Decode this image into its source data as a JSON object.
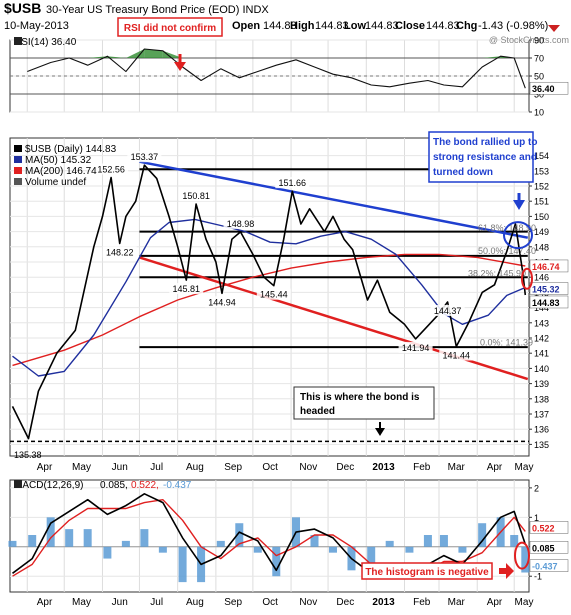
{
  "header": {
    "symbol": "$USB",
    "name": "30-Year US Treasury Bond Price (EOD) INDX",
    "date": "10-May-2013",
    "open_label": "Open",
    "open": "144.83",
    "high_label": "High",
    "high": "144.83",
    "low_label": "Low",
    "low": "144.83",
    "close_label": "Close",
    "close": "144.83",
    "chg_label": "Chg",
    "chg": "-1.43 (-0.98%)",
    "watermark": "@ StockCharts.com"
  },
  "colors": {
    "price": "#000000",
    "ma50": "#1f2f9e",
    "ma200": "#e02020",
    "trend_red": "#e02020",
    "trend_blue": "#1f3fcf",
    "annotation_red": "#e02020",
    "annotation_blue": "#1f3fcf",
    "hist": "#5b9bd5",
    "macd_signal": "#e02020",
    "rsi_fill": "#2e8b2e"
  },
  "x_months": [
    "Apr",
    "May",
    "Jun",
    "Jul",
    "Aug",
    "Sep",
    "Oct",
    "Nov",
    "Dec",
    "2013",
    "Feb",
    "Mar",
    "Apr",
    "May"
  ],
  "chart_data": [
    {
      "type": "line",
      "panel": "rsi",
      "title": "RSI(14) 36.40",
      "ylim": [
        10,
        90
      ],
      "yticks": [
        10,
        30,
        50,
        70,
        90
      ],
      "value_label": "36.40",
      "x": [
        "2012-04-01",
        "2012-04-20",
        "2012-05-05",
        "2012-05-20",
        "2012-06-05",
        "2012-06-20",
        "2012-07-05",
        "2012-07-20",
        "2012-08-05",
        "2012-08-20",
        "2012-09-05",
        "2012-09-20",
        "2012-10-05",
        "2012-10-20",
        "2012-11-05",
        "2012-11-20",
        "2012-12-05",
        "2012-12-20",
        "2013-01-05",
        "2013-01-20",
        "2013-02-05",
        "2013-02-20",
        "2013-03-05",
        "2013-03-20",
        "2013-04-05",
        "2013-04-20",
        "2013-05-01",
        "2013-05-10"
      ],
      "values": [
        55,
        65,
        70,
        62,
        72,
        55,
        80,
        78,
        60,
        45,
        58,
        48,
        55,
        62,
        68,
        60,
        52,
        48,
        40,
        38,
        42,
        45,
        40,
        38,
        60,
        72,
        70,
        36.4
      ]
    },
    {
      "type": "line",
      "panel": "price",
      "title": "$USB (Daily) 144.83",
      "ylim": [
        134.5,
        154.5
      ],
      "yticks": [
        135,
        136,
        137,
        138,
        139,
        140,
        141,
        142,
        143,
        144,
        145,
        146,
        147,
        148,
        149,
        150,
        151,
        152,
        153,
        154
      ],
      "series": [
        {
          "name": "$USB (Daily) 144.83",
          "key": "price",
          "x": [
            "2012-03-20",
            "2012-04-02",
            "2012-04-10",
            "2012-04-25",
            "2012-05-10",
            "2012-05-25",
            "2012-06-01",
            "2012-06-08",
            "2012-06-15",
            "2012-06-20",
            "2012-06-28",
            "2012-07-05",
            "2012-07-15",
            "2012-07-25",
            "2012-08-01",
            "2012-08-08",
            "2012-08-16",
            "2012-08-24",
            "2012-09-01",
            "2012-09-06",
            "2012-09-14",
            "2012-09-21",
            "2012-10-01",
            "2012-10-10",
            "2012-10-18",
            "2012-10-26",
            "2012-11-02",
            "2012-11-09",
            "2012-11-16",
            "2012-11-28",
            "2012-12-05",
            "2012-12-14",
            "2012-12-21",
            "2013-01-02",
            "2013-01-10",
            "2013-01-20",
            "2013-02-01",
            "2013-02-10",
            "2013-02-20",
            "2013-02-28",
            "2013-03-08",
            "2013-03-15",
            "2013-03-25",
            "2013-04-05",
            "2013-04-15",
            "2013-04-25",
            "2013-05-02",
            "2013-05-08",
            "2013-05-10"
          ],
          "values": [
            137.5,
            135.38,
            138.5,
            141,
            142.5,
            148,
            150,
            152.56,
            148.22,
            150,
            151,
            153.37,
            152.5,
            150,
            148,
            145.81,
            150.81,
            148.5,
            147,
            144.94,
            148.5,
            148.98,
            147.5,
            146,
            145.44,
            148.5,
            151.66,
            149.5,
            150.5,
            149,
            150,
            148.5,
            147.8,
            144.5,
            145.8,
            143.7,
            142.9,
            141.94,
            142.8,
            143.5,
            144.37,
            141.44,
            143,
            145,
            145.5,
            147.7,
            149.5,
            146.3,
            144.83
          ]
        },
        {
          "name": "MA(50) 145.32",
          "key": "ma50",
          "x": [
            "2012-03-20",
            "2012-04-10",
            "2012-05-01",
            "2012-05-25",
            "2012-06-20",
            "2012-07-10",
            "2012-07-25",
            "2012-08-15",
            "2012-09-05",
            "2012-09-25",
            "2012-10-15",
            "2012-11-05",
            "2012-11-25",
            "2012-12-15",
            "2013-01-05",
            "2013-01-25",
            "2013-02-15",
            "2013-03-05",
            "2013-03-20",
            "2013-04-10",
            "2013-04-25",
            "2013-05-10"
          ],
          "values": [
            140.8,
            139.5,
            139.8,
            142.2,
            145.7,
            148.6,
            149.6,
            149.8,
            149.4,
            149,
            148.3,
            148.2,
            148.7,
            149,
            148.5,
            147.5,
            145.5,
            143.6,
            142.9,
            143.5,
            144.8,
            145.32
          ]
        },
        {
          "name": "MA(200) 146.74",
          "key": "ma200",
          "x": [
            "2012-03-20",
            "2012-05-01",
            "2012-06-01",
            "2012-07-01",
            "2012-08-01",
            "2012-09-01",
            "2012-10-01",
            "2012-11-01",
            "2012-12-01",
            "2013-01-01",
            "2013-02-01",
            "2013-03-01",
            "2013-04-01",
            "2013-05-10"
          ],
          "values": [
            140.2,
            141.2,
            142.2,
            143.4,
            144.5,
            145.3,
            146,
            146.6,
            147,
            147.3,
            147.5,
            147.5,
            147.3,
            146.74
          ]
        }
      ],
      "legend": [
        "$USB (Daily) 144.83",
        "MA(50) 145.32",
        "MA(200) 146.74",
        "Volume undef"
      ],
      "peak_labels": [
        {
          "x": "2012-06-08",
          "y": 152.56,
          "text": "152.56"
        },
        {
          "x": "2012-07-05",
          "y": 153.37,
          "text": "153.37"
        },
        {
          "x": "2012-06-15",
          "y": 148.22,
          "text": "148.22"
        },
        {
          "x": "2012-08-16",
          "y": 150.81,
          "text": "150.81"
        },
        {
          "x": "2012-08-08",
          "y": 145.81,
          "text": "145.81"
        },
        {
          "x": "2012-09-21",
          "y": 148.98,
          "text": "148.98"
        },
        {
          "x": "2012-09-06",
          "y": 144.94,
          "text": "144.94"
        },
        {
          "x": "2012-10-18",
          "y": 145.44,
          "text": "145.44"
        },
        {
          "x": "2012-11-02",
          "y": 151.66,
          "text": "151.66"
        },
        {
          "x": "2013-03-08",
          "y": 144.37,
          "text": "144.37"
        },
        {
          "x": "2013-02-10",
          "y": 141.94,
          "text": "141.94"
        },
        {
          "x": "2013-03-15",
          "y": 141.44,
          "text": "141.44"
        }
      ],
      "fib_labels": [
        "61.8%: 148.90",
        "50.0%: 147.40",
        "38.2%: 145.90",
        "0.0%: 141.39"
      ],
      "fib_values": [
        148.9,
        147.4,
        145.9,
        141.39
      ],
      "support_lines": [
        {
          "y": 153.1,
          "from": "2012-07-01",
          "to": "2013-05-12"
        },
        {
          "y": 149,
          "from": "2012-07-01",
          "to": "2013-05-12"
        },
        {
          "y": 147.4,
          "from": "2012-07-01",
          "to": "2013-05-12"
        },
        {
          "y": 146,
          "from": "2012-07-01",
          "to": "2013-05-12"
        },
        {
          "y": 141.4,
          "from": "2012-07-01",
          "to": "2013-05-12"
        }
      ],
      "trendlines": [
        {
          "key": "trend_blue",
          "from": [
            "2012-07-01",
            153.6
          ],
          "to": [
            "2013-05-12",
            148.6
          ]
        },
        {
          "key": "trend_red",
          "from": [
            "2012-07-01",
            147.3
          ],
          "to": [
            "2013-05-12",
            139.3
          ]
        }
      ],
      "target_line": 135.2,
      "last_labels": [
        "146.74",
        "145.32",
        "144.83",
        "135.38"
      ]
    },
    {
      "type": "line",
      "panel": "macd",
      "title": "MACD(12,26,9) 0.085, 0.522, -0.437",
      "ylim": [
        -1.4,
        2.2
      ],
      "yticks": [
        -1,
        0,
        1,
        2
      ],
      "value_labels": [
        "0.522",
        "0.085",
        "-0.437"
      ],
      "series": [
        {
          "name": "MACD(12,26,9) 0.085",
          "key": "macd",
          "x": [
            "2012-03-20",
            "2012-04-05",
            "2012-04-20",
            "2012-05-05",
            "2012-05-20",
            "2012-06-05",
            "2012-06-20",
            "2012-07-05",
            "2012-07-20",
            "2012-08-05",
            "2012-08-20",
            "2012-09-05",
            "2012-09-20",
            "2012-10-05",
            "2012-10-20",
            "2012-11-05",
            "2012-11-20",
            "2012-12-05",
            "2012-12-20",
            "2013-01-05",
            "2013-01-20",
            "2013-02-05",
            "2013-02-20",
            "2013-03-05",
            "2013-03-20",
            "2013-04-05",
            "2013-04-20",
            "2013-05-01",
            "2013-05-10"
          ],
          "values": [
            -0.9,
            -0.4,
            0.8,
            1.2,
            1.6,
            1.1,
            1.4,
            1.8,
            1.5,
            0.3,
            -0.6,
            -0.3,
            0.5,
            0.2,
            -0.8,
            0.5,
            0.6,
            0.3,
            -0.4,
            -0.9,
            -0.7,
            -1.0,
            -0.6,
            -0.3,
            -0.6,
            0.2,
            1.0,
            1.2,
            0.085
          ]
        },
        {
          "name": "0.522",
          "key": "macd_signal",
          "x": [
            "2012-03-20",
            "2012-04-05",
            "2012-04-20",
            "2012-05-05",
            "2012-05-20",
            "2012-06-05",
            "2012-06-20",
            "2012-07-05",
            "2012-07-20",
            "2012-08-05",
            "2012-08-20",
            "2012-09-05",
            "2012-09-20",
            "2012-10-05",
            "2012-10-20",
            "2012-11-05",
            "2012-11-20",
            "2012-12-05",
            "2012-12-20",
            "2013-01-05",
            "2013-01-20",
            "2013-02-05",
            "2013-02-20",
            "2013-03-05",
            "2013-03-20",
            "2013-04-05",
            "2013-04-20",
            "2013-05-01",
            "2013-05-10"
          ],
          "values": [
            -1.0,
            -0.6,
            0.3,
            0.9,
            1.3,
            1.3,
            1.3,
            1.5,
            1.6,
            0.9,
            0.0,
            -0.4,
            0.1,
            0.3,
            -0.3,
            0.0,
            0.4,
            0.4,
            0.0,
            -0.6,
            -0.8,
            -0.9,
            -0.8,
            -0.5,
            -0.5,
            -0.2,
            0.5,
            1.0,
            0.522
          ]
        }
      ],
      "histogram_label": "-0.437"
    }
  ],
  "annotations": {
    "rsi_note": "RSI did not confirm",
    "bond_note": "The bond rallied up to strong resistance and turned down",
    "target_note": "This is where the bond is headed",
    "hist_note": "The histogram is negative"
  }
}
